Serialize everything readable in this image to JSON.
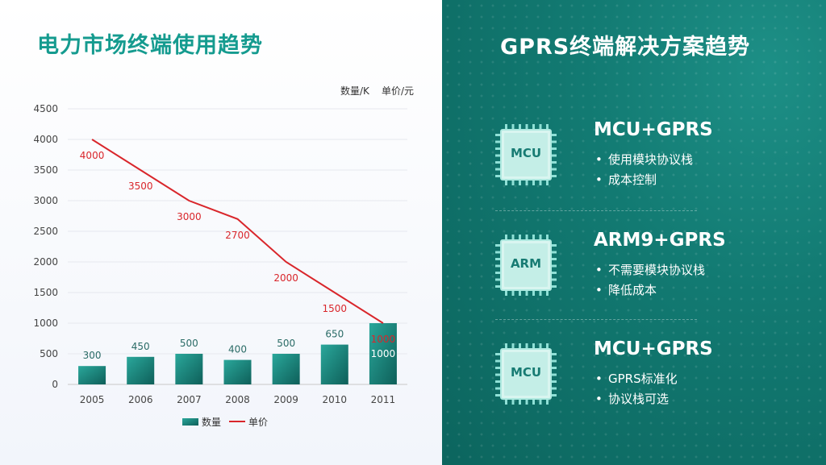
{
  "left_title": "电力市场终端使用趋势",
  "units": {
    "quantity": "数量/K",
    "price": "单价/元"
  },
  "chart_data": {
    "type": "bar",
    "categories": [
      "2005",
      "2006",
      "2007",
      "2008",
      "2009",
      "2010",
      "2011"
    ],
    "ylim": [
      0,
      4500
    ],
    "yticks": [
      0,
      500,
      1000,
      1500,
      2000,
      2500,
      3000,
      3500,
      4000,
      4500
    ],
    "grid": true,
    "legend_position": "bottom",
    "series": [
      {
        "name": "数量",
        "type": "bar",
        "values": [
          300,
          450,
          500,
          400,
          500,
          650,
          1000
        ],
        "color": "#17877e"
      },
      {
        "name": "单价",
        "type": "line",
        "values": [
          4000,
          3500,
          3000,
          2700,
          2000,
          1500,
          1000
        ],
        "color": "#d9262b"
      }
    ]
  },
  "right_title": "GPRS终端解决方案趋势",
  "solutions": [
    {
      "chip_label": "MCU",
      "title": "MCU+GPRS",
      "items": [
        "使用模块协议栈",
        "成本控制"
      ]
    },
    {
      "chip_label": "ARM",
      "title": "ARM9+GPRS",
      "items": [
        "不需要模块协议栈",
        "降低成本"
      ]
    },
    {
      "chip_label": "MCU",
      "title": "MCU+GPRS",
      "items": [
        "GPRS标准化",
        "协议栈可选"
      ]
    }
  ],
  "colors": {
    "accent": "#159b8f",
    "panel": "#127a72",
    "price_line": "#d9262b",
    "bar": "#17877e"
  },
  "icons": {
    "chip": "chip-icon"
  }
}
